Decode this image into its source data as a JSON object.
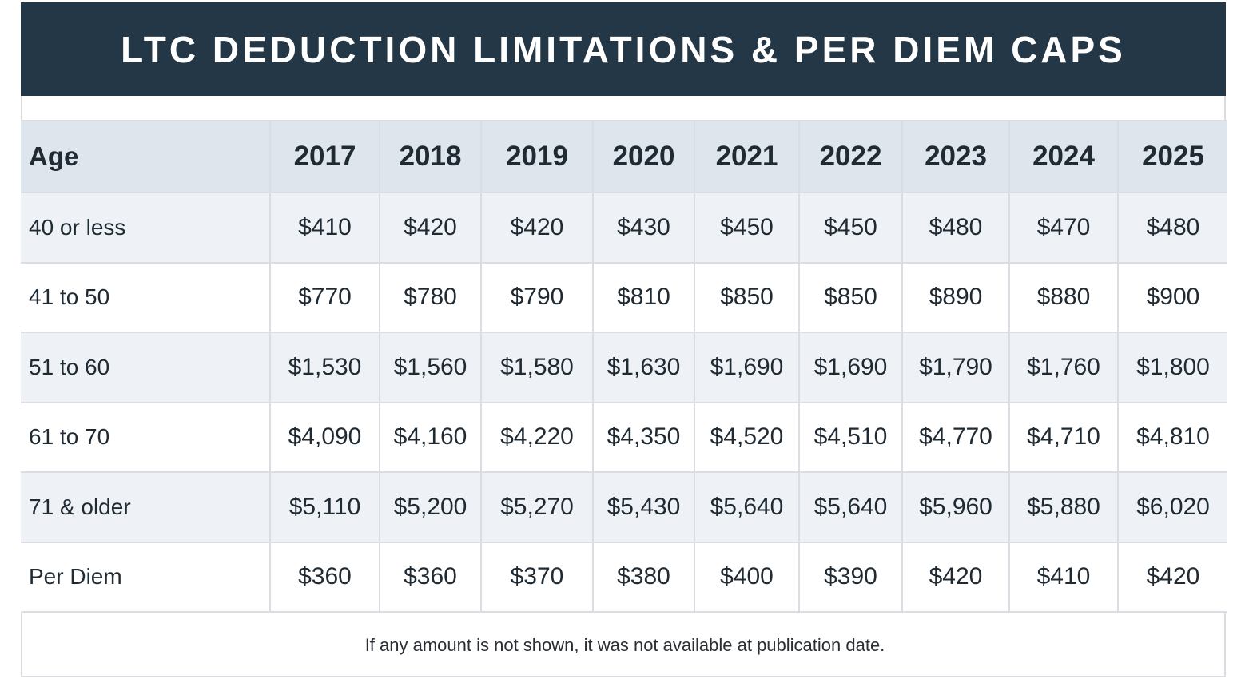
{
  "title": "LTC DEDUCTION LIMITATIONS & PER DIEM CAPS",
  "table": {
    "headers": [
      "Age",
      "2017",
      "2018",
      "2019",
      "2020",
      "2021",
      "2022",
      "2023",
      "2024",
      "2025"
    ],
    "rows": [
      [
        "40 or less",
        "$410",
        "$420",
        "$420",
        "$430",
        "$450",
        "$450",
        "$480",
        "$470",
        "$480"
      ],
      [
        "41 to 50",
        "$770",
        "$780",
        "$790",
        "$810",
        "$850",
        "$850",
        "$890",
        "$880",
        "$900"
      ],
      [
        "51 to 60",
        "$1,530",
        "$1,560",
        "$1,580",
        "$1,630",
        "$1,690",
        "$1,690",
        "$1,790",
        "$1,760",
        "$1,800"
      ],
      [
        "61 to 70",
        "$4,090",
        "$4,160",
        "$4,220",
        "$4,350",
        "$4,520",
        "$4,510",
        "$4,770",
        "$4,710",
        "$4,810"
      ],
      [
        "71 & older",
        "$5,110",
        "$5,200",
        "$5,270",
        "$5,430",
        "$5,640",
        "$5,640",
        "$5,960",
        "$5,880",
        "$6,020"
      ],
      [
        "Per Diem",
        "$360",
        "$360",
        "$370",
        "$380",
        "$400",
        "$390",
        "$420",
        "$410",
        "$420"
      ]
    ]
  },
  "footnote": "If any amount is not shown, it was not available at publication date.",
  "colors": {
    "title_bg": "#233746",
    "header_bg": "#dfe5ec",
    "row_shade": "#eef2f6",
    "border": "#dadde2"
  }
}
